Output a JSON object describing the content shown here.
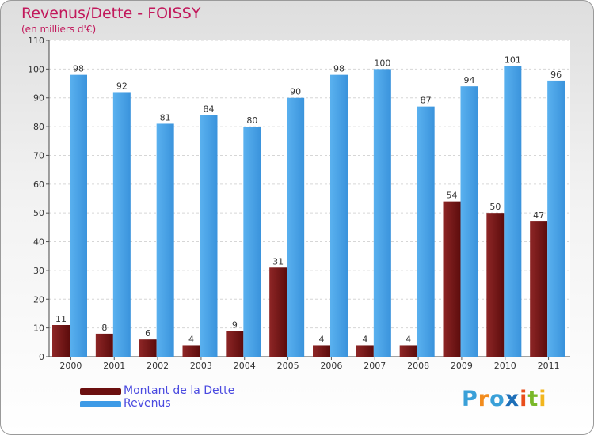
{
  "chart_data": {
    "type": "bar",
    "title": "Revenus/Dette - FOISSY",
    "subtitle": "(en milliers d'€)",
    "categories": [
      "2000",
      "2001",
      "2002",
      "2003",
      "2004",
      "2005",
      "2006",
      "2007",
      "2008",
      "2009",
      "2010",
      "2011"
    ],
    "series": [
      {
        "name": "Montant de la Dette",
        "color": "#7a1818",
        "values": [
          11,
          8,
          6,
          4,
          9,
          31,
          4,
          4,
          4,
          54,
          50,
          47
        ]
      },
      {
        "name": "Revenus",
        "color": "#4aa3e8",
        "values": [
          98,
          92,
          81,
          84,
          80,
          90,
          98,
          100,
          87,
          94,
          101,
          96
        ]
      }
    ],
    "ylim": [
      0,
      110
    ],
    "yticks": [
      0,
      10,
      20,
      30,
      40,
      50,
      60,
      70,
      80,
      90,
      100,
      110
    ],
    "grid": true,
    "legend_position": "bottom-left"
  },
  "legend": {
    "items": [
      {
        "label": "Montant de la Dette",
        "color": "#6b0f0f"
      },
      {
        "label": "Revenus",
        "color": "#3d9ae6"
      }
    ]
  },
  "logo": {
    "text": "Proxiti",
    "letters": [
      "P",
      "r",
      "o",
      "x",
      "i",
      "t",
      "i"
    ],
    "colors": [
      "#3aa0d8",
      "#f28c1e",
      "#3aa0d8",
      "#1e6fb8",
      "#e94e1b",
      "#7ab829",
      "#f2b61e"
    ]
  }
}
